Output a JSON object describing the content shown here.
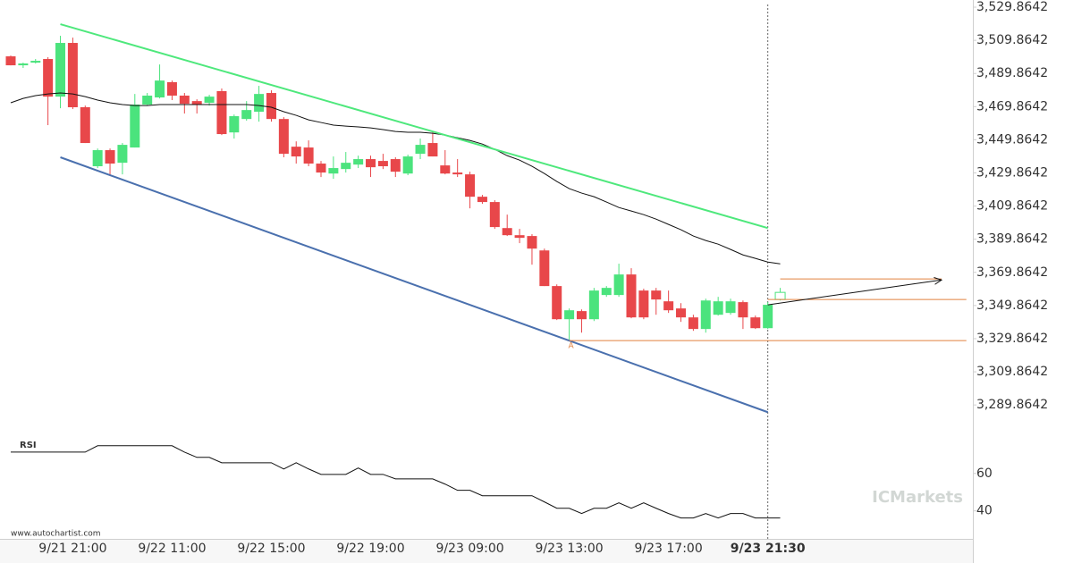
{
  "chart_data": {
    "type": "candlestick",
    "categories": [
      null,
      null,
      null,
      null,
      null,
      "9/21 21:00",
      null,
      null,
      null,
      null,
      null,
      null,
      null,
      "9/22 11:00",
      null,
      null,
      null,
      null,
      null,
      null,
      null,
      "9/22 15:00",
      null,
      null,
      null,
      null,
      null,
      null,
      null,
      "9/22 19:00",
      null,
      null,
      null,
      null,
      null,
      null,
      null,
      "9/23 09:00",
      null,
      null,
      null,
      null,
      null,
      null,
      null,
      "9/23 13:00",
      null,
      null,
      null,
      null,
      null,
      null,
      null,
      "9/23 17:00",
      null,
      null,
      null,
      null,
      null,
      null,
      null,
      "9/23 21:30",
      null
    ],
    "open": [
      3500.2,
      3494.8,
      3496.4,
      3498.6,
      3475.9,
      3508.3,
      3469.5,
      3433.9,
      3443.6,
      3436.0,
      3445.2,
      3471.1,
      3475.4,
      3484.6,
      3476.5,
      3473.2,
      3472.2,
      3479.2,
      3454.3,
      3462.4,
      3466.8,
      3478.1,
      3462.4,
      3445.7,
      3445.2,
      3435.5,
      3429.5,
      3432.2,
      3434.9,
      3438.2,
      3437.1,
      3438.2,
      3429.5,
      3441.4,
      3447.9,
      3434.4,
      3430.1,
      3429.0,
      3415.5,
      3412.3,
      3396.6,
      3392.3,
      3391.8,
      3383.1,
      3361.6,
      3341.6,
      3346.5,
      3341.6,
      3356.2,
      3356.2,
      3368.6,
      3358.9,
      3358.9,
      3352.4,
      3348.1,
      3342.7,
      3335.7,
      3344.3,
      3345.4,
      3351.9,
      3342.7,
      3336.2,
      3353.5
    ],
    "high": [
      3500.7,
      3496.4,
      3498.6,
      3499.7,
      3512.6,
      3511.5,
      3470.5,
      3444.6,
      3444.6,
      3447.9,
      3477.5,
      3478.1,
      3495.3,
      3485.6,
      3478.1,
      3474.3,
      3477.0,
      3480.8,
      3465.1,
      3473.2,
      3482.4,
      3479.7,
      3463.5,
      3448.9,
      3449.5,
      3437.1,
      3439.8,
      3442.5,
      3440.3,
      3440.3,
      3441.4,
      3439.3,
      3440.9,
      3450.6,
      3454.3,
      3443.6,
      3438.2,
      3430.6,
      3416.6,
      3413.4,
      3404.7,
      3396.1,
      3392.9,
      3384.2,
      3362.6,
      3348.1,
      3347.5,
      3360.5,
      3361.6,
      3375.1,
      3372.4,
      3360.0,
      3360.5,
      3358.9,
      3351.3,
      3344.3,
      3354.0,
      3355.1,
      3354.0,
      3352.9,
      3343.8,
      3351.9,
      3360.5
    ],
    "low": [
      3494.8,
      3493.2,
      3495.9,
      3458.7,
      3468.9,
      3468.4,
      3447.9,
      3432.8,
      3428.5,
      3429.0,
      3445.2,
      3470.5,
      3474.8,
      3473.8,
      3465.7,
      3465.7,
      3470.5,
      3452.7,
      3450.6,
      3461.4,
      3460.8,
      3460.8,
      3439.3,
      3435.5,
      3433.9,
      3427.4,
      3426.3,
      3430.1,
      3432.8,
      3427.4,
      3432.2,
      3427.4,
      3428.5,
      3438.2,
      3439.8,
      3429.0,
      3427.4,
      3408.5,
      3411.2,
      3396.1,
      3391.8,
      3387.5,
      3374.5,
      3361.6,
      3341.1,
      3329.2,
      3333.5,
      3340.5,
      3355.1,
      3355.1,
      3342.2,
      3341.6,
      3344.3,
      3345.4,
      3340.0,
      3334.6,
      3333.5,
      3343.8,
      3344.3,
      3335.7,
      3335.7,
      3335.7,
      3352.9
    ],
    "close": [
      3494.8,
      3495.9,
      3497.5,
      3475.9,
      3508.3,
      3469.5,
      3447.9,
      3443.6,
      3435.5,
      3446.8,
      3471.1,
      3476.5,
      3485.6,
      3476.5,
      3471.6,
      3471.1,
      3475.9,
      3453.3,
      3464.1,
      3467.8,
      3477.5,
      3462.4,
      3441.4,
      3439.8,
      3435.5,
      3430.1,
      3432.8,
      3436.0,
      3438.2,
      3433.3,
      3433.9,
      3430.6,
      3439.8,
      3446.8,
      3439.8,
      3429.5,
      3429.0,
      3415.5,
      3412.3,
      3397.2,
      3392.3,
      3390.7,
      3384.2,
      3361.6,
      3341.6,
      3347.0,
      3341.6,
      3358.9,
      3360.5,
      3368.6,
      3342.7,
      3342.7,
      3353.5,
      3347.0,
      3342.7,
      3335.7,
      3352.9,
      3352.4,
      3352.4,
      3342.7,
      3336.2,
      3350.3,
      3357.8
    ],
    "up_color": "#4be37d",
    "down_color": "#e8474a",
    "last_hollow": true,
    "current_index": 61,
    "ylim": [
      3270,
      3531.5
    ],
    "yticks": [
      {
        "value": 3529.8642,
        "label": "3,529.8642"
      },
      {
        "value": 3509.8642,
        "label": "3,509.8642"
      },
      {
        "value": 3489.8642,
        "label": "3,489.8642"
      },
      {
        "value": 3469.8642,
        "label": "3,469.8642"
      },
      {
        "value": 3449.8642,
        "label": "3,449.8642"
      },
      {
        "value": 3429.8642,
        "label": "3,429.8642"
      },
      {
        "value": 3409.8642,
        "label": "3,409.8642"
      },
      {
        "value": 3389.8642,
        "label": "3,389.8642"
      },
      {
        "value": 3369.8642,
        "label": "3,369.8642"
      },
      {
        "value": 3349.8642,
        "label": "3,349.8642"
      },
      {
        "value": 3329.8642,
        "label": "3,329.8642"
      },
      {
        "value": 3309.8642,
        "label": "3,309.8642"
      },
      {
        "value": 3289.8642,
        "label": "3,289.8642"
      }
    ],
    "moving_average": {
      "color": "#111111",
      "values": [
        3472.2,
        3474.8,
        3476.5,
        3477.5,
        3478.1,
        3477.5,
        3475.9,
        3473.8,
        3472.2,
        3471.1,
        3470.5,
        3470.5,
        3471.1,
        3471.1,
        3471.1,
        3471.1,
        3471.1,
        3471.1,
        3471.1,
        3471.1,
        3470.5,
        3469.5,
        3466.8,
        3464.6,
        3461.9,
        3460.3,
        3458.7,
        3458.1,
        3457.6,
        3457.0,
        3456.0,
        3454.9,
        3454.4,
        3454.4,
        3453.8,
        3452.7,
        3451.1,
        3449.5,
        3447.3,
        3444.1,
        3440.3,
        3437.6,
        3433.9,
        3429.5,
        3424.7,
        3420.4,
        3417.7,
        3415.5,
        3412.3,
        3409.0,
        3406.9,
        3404.7,
        3402.0,
        3398.8,
        3395.6,
        3391.8,
        3389.1,
        3386.9,
        3383.7,
        3380.4,
        3378.3,
        3376.1,
        3375.0
      ]
    },
    "channel": [
      {
        "color": "#4ee87c",
        "x": [
          4,
          61
        ],
        "y": [
          3519.6,
          3396.6
        ]
      },
      {
        "color": "#4a70ae",
        "x": [
          4,
          61
        ],
        "y": [
          3439.3,
          3285.5
        ]
      }
    ],
    "levels": [
      {
        "color": "#e2803f",
        "value": 3365.9,
        "x": [
          62,
          75
        ]
      },
      {
        "color": "#e2803f",
        "value": 3353.5,
        "x": [
          61,
          77
        ]
      },
      {
        "color": "#e2803f",
        "value": 3328.7,
        "x": [
          45,
          77
        ],
        "label": "A"
      }
    ],
    "forecast": {
      "color": "#111111",
      "x": [
        61,
        75
      ],
      "y": [
        3350.3,
        3365.3
      ]
    },
    "rsi": {
      "title": "RSI",
      "color": "#111111",
      "values": [
        71.4,
        71.4,
        71.4,
        71.4,
        71.4,
        71.4,
        71.4,
        74.8,
        74.8,
        74.8,
        74.8,
        74.8,
        74.8,
        74.8,
        71.4,
        68.6,
        68.6,
        65.7,
        65.7,
        65.7,
        65.7,
        65.7,
        62.4,
        65.7,
        62.4,
        59.5,
        59.5,
        59.5,
        62.9,
        59.5,
        59.5,
        57.1,
        57.1,
        57.1,
        57.1,
        54.3,
        51.0,
        51.0,
        48.1,
        48.1,
        48.1,
        48.1,
        48.1,
        44.8,
        41.4,
        41.4,
        38.6,
        41.4,
        41.4,
        44.3,
        41.4,
        44.3,
        41.4,
        38.6,
        36.2,
        36.2,
        38.6,
        36.2,
        38.6,
        38.6,
        36.2,
        36.2,
        36.2
      ],
      "ylim": [
        26,
        79
      ],
      "yticks": [
        60,
        40
      ]
    },
    "source": "www.autochartist.com",
    "watermark": "ICMarkets"
  }
}
